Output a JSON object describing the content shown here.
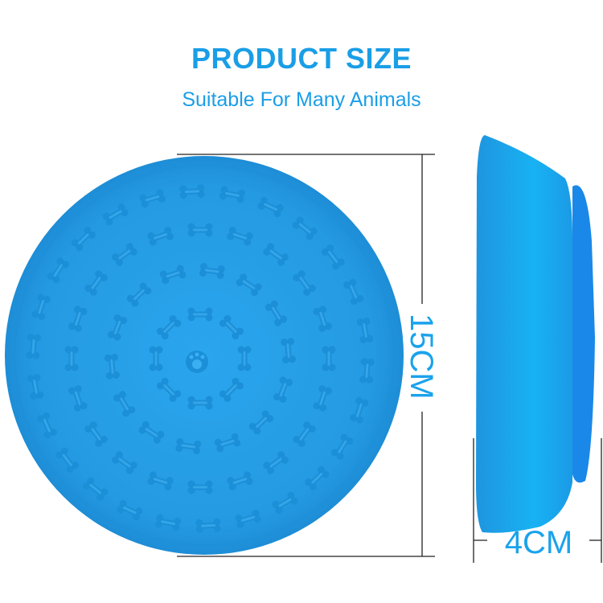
{
  "header": {
    "title": "PRODUCT SIZE",
    "subtitle": "Suitable For Many Animals"
  },
  "dimensions": {
    "diameter_label": "15CM",
    "depth_label": "4CM"
  },
  "colors": {
    "accent": "#1a9ee6",
    "product": "#2e9fe4",
    "product_dark": "#1f8fd6",
    "dimension_line": "#222222"
  },
  "icons": {
    "pattern": "bone-icon",
    "center": "paw-icon"
  }
}
